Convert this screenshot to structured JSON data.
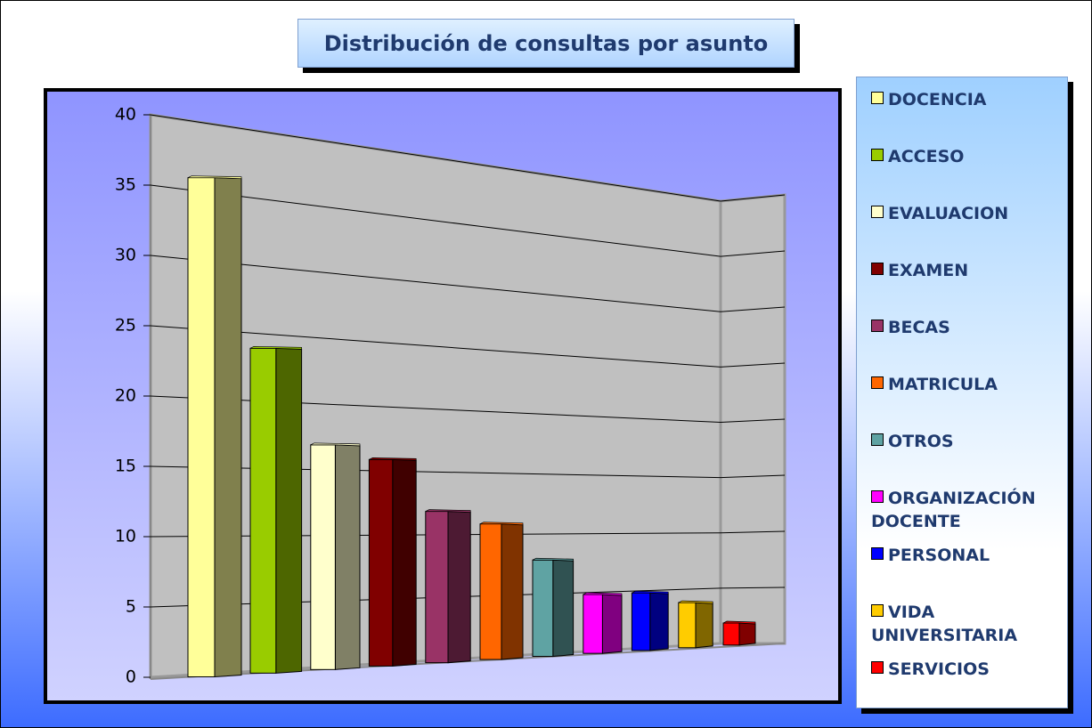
{
  "chart_data": {
    "type": "bar3d",
    "title": "Distribución de consultas por asunto",
    "categories": [
      "DOCENCIA",
      "ACCESO",
      "EVALUACION",
      "EXAMEN",
      "BECAS",
      "MATRICULA",
      "OTROS",
      "ORGANIZACIÓN DOCENTE",
      "PERSONAL",
      "VIDA UNIVERSITARIA",
      "SERVICIOS"
    ],
    "values": [
      36,
      24,
      17,
      16,
      12,
      11,
      8,
      5,
      5,
      4,
      2
    ],
    "colors": [
      "#ffff99",
      "#99cc00",
      "#ffffcc",
      "#800000",
      "#993366",
      "#ff6600",
      "#5fa3a3",
      "#ff00ff",
      "#0000ff",
      "#ffcc00",
      "#ff0000"
    ],
    "ylim": [
      0,
      40
    ],
    "yticks": [
      0,
      5,
      10,
      15,
      20,
      25,
      30,
      35,
      40
    ],
    "grid": true,
    "legend": "right"
  }
}
